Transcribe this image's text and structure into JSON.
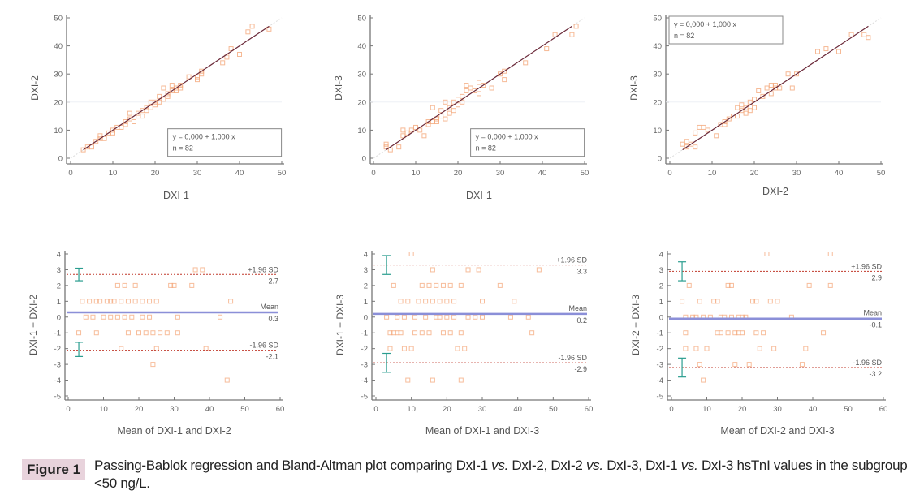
{
  "figure": {
    "label": "Figure 1",
    "caption_parts": [
      {
        "t": "Passing-Bablok regression and Bland-Altman plot comparing DxI-1 ",
        "i": false
      },
      {
        "t": "vs.",
        "i": true
      },
      {
        "t": " DxI-2, DxI-2 ",
        "i": false
      },
      {
        "t": "vs.",
        "i": true
      },
      {
        "t": " DxI-3, DxI-1 ",
        "i": false
      },
      {
        "t": "vs.",
        "i": true
      },
      {
        "t": " DxI-3 hsTnI values in the subgroup <50 ng/L.",
        "i": false
      }
    ]
  },
  "colors": {
    "axis": "#777777",
    "points": "#f4a77a",
    "fit_line": "#6b2a3a",
    "identity_line": "#dddddd",
    "mean_line": "#8b8fd8",
    "sd_line": "#c0392b",
    "ci_bar": "#2a9d8f"
  },
  "chart_data": [
    {
      "type": "scatter",
      "subtype": "passing-bablok",
      "xlabel": "DXI-1",
      "ylabel": "DXI-2",
      "xlim": [
        0,
        50
      ],
      "ylim": [
        0,
        50
      ],
      "xticks": [
        0,
        10,
        20,
        30,
        40,
        50
      ],
      "yticks": [
        0,
        10,
        20,
        30,
        40,
        50
      ],
      "equation": "y = 0,000  +  1,000  x",
      "n_label": "n = 82",
      "legend_position": "bottom-right",
      "fit": {
        "intercept": 0,
        "slope": 1,
        "x_range": [
          3,
          47
        ]
      },
      "points": [
        [
          3,
          3
        ],
        [
          4,
          4
        ],
        [
          5,
          4
        ],
        [
          6,
          6
        ],
        [
          7,
          7
        ],
        [
          7,
          8
        ],
        [
          8,
          7
        ],
        [
          9,
          9
        ],
        [
          10,
          9
        ],
        [
          10,
          10
        ],
        [
          11,
          11
        ],
        [
          12,
          11
        ],
        [
          13,
          13
        ],
        [
          13,
          12
        ],
        [
          14,
          16
        ],
        [
          14,
          14
        ],
        [
          15,
          13
        ],
        [
          15,
          15
        ],
        [
          16,
          16
        ],
        [
          16,
          15
        ],
        [
          17,
          17
        ],
        [
          17,
          15
        ],
        [
          18,
          18
        ],
        [
          18,
          17
        ],
        [
          19,
          20
        ],
        [
          19,
          18
        ],
        [
          20,
          19
        ],
        [
          20,
          20
        ],
        [
          21,
          22
        ],
        [
          21,
          20
        ],
        [
          22,
          21
        ],
        [
          22,
          25
        ],
        [
          23,
          22
        ],
        [
          23,
          23
        ],
        [
          24,
          24
        ],
        [
          24,
          26
        ],
        [
          25,
          25
        ],
        [
          25,
          24
        ],
        [
          26,
          26
        ],
        [
          26,
          25
        ],
        [
          28,
          29
        ],
        [
          30,
          29
        ],
        [
          30,
          28
        ],
        [
          31,
          30
        ],
        [
          31,
          31
        ],
        [
          36,
          34
        ],
        [
          37,
          36
        ],
        [
          38,
          39
        ],
        [
          40,
          37
        ],
        [
          42,
          45
        ],
        [
          43,
          47
        ],
        [
          47,
          46
        ]
      ]
    },
    {
      "type": "scatter",
      "subtype": "passing-bablok",
      "xlabel": "DXI-1",
      "ylabel": "DXI-3",
      "xlim": [
        0,
        50
      ],
      "ylim": [
        0,
        50
      ],
      "xticks": [
        0,
        10,
        20,
        30,
        40,
        50
      ],
      "yticks": [
        0,
        10,
        20,
        30,
        40,
        50
      ],
      "equation": "y = 0,000  +  1,000  x",
      "n_label": "n = 82",
      "legend_position": "bottom-right",
      "fit": {
        "intercept": 0,
        "slope": 1,
        "x_range": [
          3,
          47
        ]
      },
      "points": [
        [
          3,
          5
        ],
        [
          3,
          4
        ],
        [
          4,
          3
        ],
        [
          6,
          4
        ],
        [
          7,
          10
        ],
        [
          7,
          8
        ],
        [
          8,
          9
        ],
        [
          9,
          10
        ],
        [
          10,
          11
        ],
        [
          11,
          10
        ],
        [
          12,
          8
        ],
        [
          13,
          13
        ],
        [
          13,
          12
        ],
        [
          14,
          18
        ],
        [
          14,
          13
        ],
        [
          15,
          14
        ],
        [
          15,
          13
        ],
        [
          16,
          15
        ],
        [
          16,
          17
        ],
        [
          17,
          14
        ],
        [
          17,
          20
        ],
        [
          18,
          18
        ],
        [
          18,
          16
        ],
        [
          19,
          17
        ],
        [
          19,
          20
        ],
        [
          20,
          19
        ],
        [
          20,
          21
        ],
        [
          21,
          20
        ],
        [
          21,
          22
        ],
        [
          22,
          26
        ],
        [
          22,
          24
        ],
        [
          23,
          25
        ],
        [
          24,
          24
        ],
        [
          25,
          27
        ],
        [
          25,
          23
        ],
        [
          26,
          26
        ],
        [
          28,
          25
        ],
        [
          30,
          30
        ],
        [
          31,
          28
        ],
        [
          31,
          31
        ],
        [
          36,
          34
        ],
        [
          41,
          39
        ],
        [
          43,
          44
        ],
        [
          47,
          44
        ],
        [
          48,
          47
        ]
      ]
    },
    {
      "type": "scatter",
      "subtype": "passing-bablok",
      "xlabel": "DXI-2",
      "ylabel": "DXI-3",
      "xlim": [
        0,
        50
      ],
      "ylim": [
        0,
        50
      ],
      "xticks": [
        0,
        10,
        20,
        30,
        40,
        50
      ],
      "yticks": [
        0,
        10,
        20,
        30,
        40,
        50
      ],
      "equation": "y = 0,000  +  1,000  x",
      "n_label": "n = 82",
      "legend_position": "top-left",
      "fit": {
        "intercept": 0,
        "slope": 1,
        "x_range": [
          3,
          47
        ]
      },
      "points": [
        [
          3,
          5
        ],
        [
          4,
          4
        ],
        [
          4,
          6
        ],
        [
          5,
          5
        ],
        [
          6,
          9
        ],
        [
          6,
          4
        ],
        [
          7,
          11
        ],
        [
          8,
          11
        ],
        [
          9,
          10
        ],
        [
          11,
          8
        ],
        [
          12,
          12
        ],
        [
          13,
          13
        ],
        [
          13,
          12
        ],
        [
          14,
          14
        ],
        [
          15,
          15
        ],
        [
          16,
          18
        ],
        [
          16,
          15
        ],
        [
          17,
          19
        ],
        [
          17,
          17
        ],
        [
          18,
          18
        ],
        [
          18,
          16
        ],
        [
          19,
          20
        ],
        [
          19,
          17
        ],
        [
          20,
          18
        ],
        [
          20,
          21
        ],
        [
          21,
          24
        ],
        [
          22,
          22
        ],
        [
          23,
          25
        ],
        [
          24,
          23
        ],
        [
          24,
          26
        ],
        [
          25,
          26
        ],
        [
          25,
          25
        ],
        [
          26,
          25
        ],
        [
          28,
          30
        ],
        [
          29,
          25
        ],
        [
          30,
          30
        ],
        [
          35,
          38
        ],
        [
          37,
          39
        ],
        [
          40,
          38
        ],
        [
          43,
          44
        ],
        [
          46,
          44
        ],
        [
          47,
          43
        ]
      ]
    },
    {
      "type": "scatter",
      "subtype": "bland-altman",
      "xlabel": "Mean of DXI-1 and DXI-2",
      "ylabel": "DXI-1 − DXI-2",
      "xlim": [
        0,
        60
      ],
      "ylim": [
        -5,
        4
      ],
      "xticks": [
        0,
        10,
        20,
        30,
        40,
        50,
        60
      ],
      "yticks": [
        -5,
        -4,
        -3,
        -2,
        -1,
        0,
        1,
        2,
        3,
        4
      ],
      "mean": 0.3,
      "mean_label": "Mean",
      "mean_value_label": "0.3",
      "upper_loa": 2.7,
      "upper_label": "+1.96 SD",
      "upper_value_label": "2.7",
      "lower_loa": -2.1,
      "lower_label": "-1.96 SD",
      "lower_value_label": "-2.1",
      "upper_ci": [
        2.3,
        3.1
      ],
      "lower_ci": [
        -2.5,
        -1.6
      ],
      "points": [
        [
          3,
          -1
        ],
        [
          4,
          1
        ],
        [
          5,
          0
        ],
        [
          6,
          1
        ],
        [
          7,
          0
        ],
        [
          8,
          1
        ],
        [
          8,
          -1
        ],
        [
          9,
          1
        ],
        [
          10,
          0
        ],
        [
          11,
          1
        ],
        [
          12,
          1
        ],
        [
          12,
          0
        ],
        [
          13,
          1
        ],
        [
          14,
          2
        ],
        [
          14,
          0
        ],
        [
          15,
          1
        ],
        [
          15,
          -2
        ],
        [
          16,
          2
        ],
        [
          16,
          0
        ],
        [
          17,
          1
        ],
        [
          17,
          -1
        ],
        [
          18,
          0
        ],
        [
          19,
          2
        ],
        [
          19,
          1
        ],
        [
          20,
          -1
        ],
        [
          21,
          0
        ],
        [
          21,
          1
        ],
        [
          22,
          -1
        ],
        [
          23,
          1
        ],
        [
          23,
          0
        ],
        [
          24,
          -1
        ],
        [
          24,
          -3
        ],
        [
          25,
          1
        ],
        [
          25,
          -2
        ],
        [
          26,
          -1
        ],
        [
          28,
          -1
        ],
        [
          29,
          2
        ],
        [
          30,
          2
        ],
        [
          31,
          -1
        ],
        [
          31,
          0
        ],
        [
          35,
          2
        ],
        [
          36,
          3
        ],
        [
          38,
          3
        ],
        [
          39,
          -2
        ],
        [
          43,
          0
        ],
        [
          45,
          -4
        ],
        [
          46,
          1
        ]
      ]
    },
    {
      "type": "scatter",
      "subtype": "bland-altman",
      "xlabel": "Mean of DXI-1 and DXI-3",
      "ylabel": "DXI-1 − DXI-3",
      "xlim": [
        0,
        60
      ],
      "ylim": [
        -5,
        4
      ],
      "xticks": [
        0,
        10,
        20,
        30,
        40,
        50,
        60
      ],
      "yticks": [
        -5,
        -4,
        -3,
        -2,
        -1,
        0,
        1,
        2,
        3,
        4
      ],
      "mean": 0.2,
      "mean_label": "Mean",
      "mean_value_label": "0.2",
      "upper_loa": 3.3,
      "upper_label": "+1.96 SD",
      "upper_value_label": "3.3",
      "lower_loa": -2.9,
      "lower_label": "-1.96 SD",
      "lower_value_label": "-2.9",
      "upper_ci": [
        2.7,
        3.9
      ],
      "lower_ci": [
        -3.5,
        -2.3
      ],
      "points": [
        [
          3,
          0
        ],
        [
          4,
          -1
        ],
        [
          4,
          -2
        ],
        [
          5,
          -1
        ],
        [
          5,
          2
        ],
        [
          6,
          0
        ],
        [
          6,
          -1
        ],
        [
          7,
          1
        ],
        [
          7,
          -1
        ],
        [
          8,
          0
        ],
        [
          8,
          -2
        ],
        [
          9,
          1
        ],
        [
          9,
          -4
        ],
        [
          10,
          -2
        ],
        [
          10,
          4
        ],
        [
          11,
          0
        ],
        [
          11,
          -1
        ],
        [
          12,
          1
        ],
        [
          13,
          2
        ],
        [
          13,
          -1
        ],
        [
          14,
          1
        ],
        [
          14,
          0
        ],
        [
          15,
          2
        ],
        [
          15,
          -1
        ],
        [
          16,
          3
        ],
        [
          16,
          1
        ],
        [
          16,
          -4
        ],
        [
          17,
          0
        ],
        [
          17,
          2
        ],
        [
          18,
          1
        ],
        [
          18,
          0
        ],
        [
          19,
          2
        ],
        [
          19,
          -1
        ],
        [
          20,
          1
        ],
        [
          20,
          0
        ],
        [
          21,
          2
        ],
        [
          21,
          -1
        ],
        [
          22,
          1
        ],
        [
          22,
          0
        ],
        [
          23,
          -2
        ],
        [
          24,
          2
        ],
        [
          24,
          -4
        ],
        [
          24,
          -1
        ],
        [
          25,
          -2
        ],
        [
          26,
          0
        ],
        [
          26,
          3
        ],
        [
          28,
          0
        ],
        [
          29,
          3
        ],
        [
          30,
          1
        ],
        [
          30,
          0
        ],
        [
          35,
          2
        ],
        [
          38,
          0
        ],
        [
          39,
          1
        ],
        [
          43,
          0
        ],
        [
          44,
          -1
        ],
        [
          46,
          3
        ]
      ]
    },
    {
      "type": "scatter",
      "subtype": "bland-altman",
      "xlabel": "Mean of DXI-2 and DXI-3",
      "ylabel": "DXI-2 − DXI-3",
      "xlim": [
        0,
        60
      ],
      "ylim": [
        -5,
        4
      ],
      "xticks": [
        0,
        10,
        20,
        30,
        40,
        50,
        60
      ],
      "yticks": [
        -5,
        -4,
        -3,
        -2,
        -1,
        0,
        1,
        2,
        3,
        4
      ],
      "mean": -0.1,
      "mean_label": "Mean",
      "mean_value_label": "-0.1",
      "upper_loa": 2.9,
      "upper_label": "+1.96 SD",
      "upper_value_label": "2.9",
      "lower_loa": -3.2,
      "lower_label": "-1.96 SD",
      "lower_value_label": "-3.2",
      "upper_ci": [
        2.3,
        3.5
      ],
      "lower_ci": [
        -3.8,
        -2.6
      ],
      "points": [
        [
          3,
          1
        ],
        [
          4,
          0
        ],
        [
          4,
          -1
        ],
        [
          4,
          -2
        ],
        [
          5,
          2
        ],
        [
          6,
          0
        ],
        [
          7,
          0
        ],
        [
          7,
          -2
        ],
        [
          8,
          1
        ],
        [
          8,
          -3
        ],
        [
          9,
          -4
        ],
        [
          9,
          0
        ],
        [
          10,
          -2
        ],
        [
          11,
          0
        ],
        [
          12,
          1
        ],
        [
          13,
          1
        ],
        [
          13,
          -1
        ],
        [
          14,
          0
        ],
        [
          14,
          -1
        ],
        [
          15,
          0
        ],
        [
          16,
          2
        ],
        [
          16,
          -1
        ],
        [
          17,
          0
        ],
        [
          17,
          2
        ],
        [
          18,
          -1
        ],
        [
          18,
          -3
        ],
        [
          19,
          0
        ],
        [
          19,
          -1
        ],
        [
          20,
          0
        ],
        [
          20,
          -1
        ],
        [
          21,
          0
        ],
        [
          22,
          -3
        ],
        [
          23,
          1
        ],
        [
          24,
          1
        ],
        [
          24,
          -1
        ],
        [
          25,
          -2
        ],
        [
          26,
          -1
        ],
        [
          28,
          1
        ],
        [
          29,
          -2
        ],
        [
          30,
          1
        ],
        [
          34,
          0
        ],
        [
          37,
          -3
        ],
        [
          38,
          -2
        ],
        [
          39,
          2
        ],
        [
          27,
          4
        ],
        [
          43,
          -1
        ],
        [
          45,
          4
        ],
        [
          45,
          2
        ]
      ]
    }
  ]
}
